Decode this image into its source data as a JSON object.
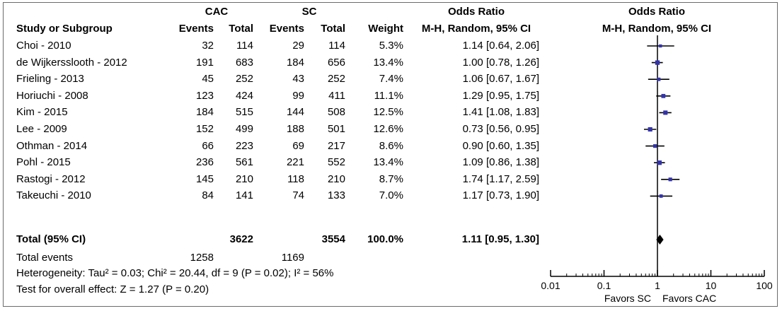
{
  "header": {
    "group1": "CAC",
    "group2": "SC",
    "or_title_left": "Odds Ratio",
    "or_title_right": "Odds Ratio",
    "col_study": "Study or Subgroup",
    "col_events1": "Events",
    "col_total1": "Total",
    "col_events2": "Events",
    "col_total2": "Total",
    "col_weight": "Weight",
    "col_method_left": "M-H, Random, 95% CI",
    "col_method_right": "M-H, Random, 95% CI"
  },
  "total": {
    "label": "Total (95% CI)",
    "total1": "3622",
    "total2": "3554",
    "weight": "100.0%",
    "ci_text": "1.11 [0.95, 1.30]"
  },
  "total_events": {
    "label": "Total events",
    "events1": "1258",
    "events2": "1169"
  },
  "heterogeneity": "Heterogeneity: Tau² = 0.03; Chi² = 20.44, df = 9 (P = 0.02); I² = 56%",
  "overall_effect": "Test for overall effect: Z = 1.27 (P = 0.20)",
  "axis": {
    "favors_left": "Favors SC",
    "favors_right": "Favors CAC"
  },
  "colors": {
    "marker": "#3333aa",
    "line": "#000000",
    "diamond": "#000000",
    "frame": "#6b6b6b"
  },
  "chart_data": {
    "type": "forest",
    "scale": "log",
    "xlim": [
      0.01,
      100
    ],
    "ticks": [
      0.01,
      0.1,
      1,
      10,
      100
    ],
    "tick_labels": [
      "0.01",
      "0.1",
      "1",
      "10",
      "100"
    ],
    "null_line": 1,
    "studies": [
      {
        "name": "Choi - 2010",
        "events1": "32",
        "total1": "114",
        "events2": "29",
        "total2": "114",
        "weight": "5.3%",
        "ci_text": "1.14 [0.64, 2.06]",
        "or": 1.14,
        "lo": 0.64,
        "hi": 2.06
      },
      {
        "name": "de Wijkersslooth - 2012",
        "events1": "191",
        "total1": "683",
        "events2": "184",
        "total2": "656",
        "weight": "13.4%",
        "ci_text": "1.00 [0.78, 1.26]",
        "or": 1.0,
        "lo": 0.78,
        "hi": 1.26
      },
      {
        "name": "Frieling - 2013",
        "events1": "45",
        "total1": "252",
        "events2": "43",
        "total2": "252",
        "weight": "7.4%",
        "ci_text": "1.06 [0.67, 1.67]",
        "or": 1.06,
        "lo": 0.67,
        "hi": 1.67
      },
      {
        "name": "Horiuchi - 2008",
        "events1": "123",
        "total1": "424",
        "events2": "99",
        "total2": "411",
        "weight": "11.1%",
        "ci_text": "1.29 [0.95, 1.75]",
        "or": 1.29,
        "lo": 0.95,
        "hi": 1.75
      },
      {
        "name": "Kim - 2015",
        "events1": "184",
        "total1": "515",
        "events2": "144",
        "total2": "508",
        "weight": "12.5%",
        "ci_text": "1.41 [1.08, 1.83]",
        "or": 1.41,
        "lo": 1.08,
        "hi": 1.83
      },
      {
        "name": "Lee - 2009",
        "events1": "152",
        "total1": "499",
        "events2": "188",
        "total2": "501",
        "weight": "12.6%",
        "ci_text": "0.73 [0.56, 0.95]",
        "or": 0.73,
        "lo": 0.56,
        "hi": 0.95
      },
      {
        "name": "Othman - 2014",
        "events1": "66",
        "total1": "223",
        "events2": "69",
        "total2": "217",
        "weight": "8.6%",
        "ci_text": "0.90 [0.60, 1.35]",
        "or": 0.9,
        "lo": 0.6,
        "hi": 1.35
      },
      {
        "name": "Pohl - 2015",
        "events1": "236",
        "total1": "561",
        "events2": "221",
        "total2": "552",
        "weight": "13.4%",
        "ci_text": "1.09 [0.86, 1.38]",
        "or": 1.09,
        "lo": 0.86,
        "hi": 1.38
      },
      {
        "name": "Rastogi - 2012",
        "events1": "145",
        "total1": "210",
        "events2": "118",
        "total2": "210",
        "weight": "8.7%",
        "ci_text": "1.74 [1.17, 2.59]",
        "or": 1.74,
        "lo": 1.17,
        "hi": 2.59
      },
      {
        "name": "Takeuchi - 2010",
        "events1": "84",
        "total1": "141",
        "events2": "74",
        "total2": "133",
        "weight": "7.0%",
        "ci_text": "1.17 [0.73, 1.90]",
        "or": 1.17,
        "lo": 0.73,
        "hi": 1.9
      }
    ],
    "pooled": {
      "or": 1.11,
      "lo": 0.95,
      "hi": 1.3
    }
  }
}
